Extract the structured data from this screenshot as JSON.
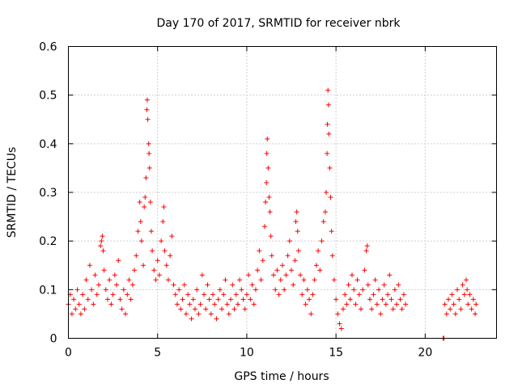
{
  "chart_data": {
    "type": "scatter",
    "title": "Day 170 of 2017, SRMTID for receiver nbrk",
    "xlabel": "GPS time / hours",
    "ylabel": "SRMTID / TECUs",
    "xlim": [
      0,
      24
    ],
    "ylim": [
      0,
      0.6
    ],
    "grid": true,
    "marker": "+",
    "color": "#ff0000",
    "x_ticks": [
      0,
      5,
      10,
      15,
      20
    ],
    "x_tick_labels": [
      "0",
      "5",
      "10",
      "15",
      "20"
    ],
    "y_ticks": [
      0,
      0.1,
      0.2,
      0.3,
      0.4,
      0.5,
      0.6
    ],
    "y_tick_labels": [
      "0",
      "0.1",
      "0.2",
      "0.3",
      "0.4",
      "0.5",
      "0.6"
    ],
    "series": [
      {
        "name": "SRMTID",
        "points": [
          [
            0.0,
            0.07
          ],
          [
            0.1,
            0.09
          ],
          [
            0.2,
            0.05
          ],
          [
            0.3,
            0.08
          ],
          [
            0.4,
            0.06
          ],
          [
            0.5,
            0.1
          ],
          [
            0.6,
            0.07
          ],
          [
            0.7,
            0.05
          ],
          [
            0.8,
            0.09
          ],
          [
            0.9,
            0.06
          ],
          [
            1.0,
            0.12
          ],
          [
            1.1,
            0.08
          ],
          [
            1.2,
            0.15
          ],
          [
            1.3,
            0.1
          ],
          [
            1.4,
            0.07
          ],
          [
            1.5,
            0.13
          ],
          [
            1.6,
            0.09
          ],
          [
            1.7,
            0.11
          ],
          [
            1.8,
            0.19
          ],
          [
            1.85,
            0.2
          ],
          [
            1.9,
            0.21
          ],
          [
            1.95,
            0.18
          ],
          [
            2.0,
            0.14
          ],
          [
            2.1,
            0.1
          ],
          [
            2.2,
            0.08
          ],
          [
            2.3,
            0.12
          ],
          [
            2.4,
            0.07
          ],
          [
            2.5,
            0.09
          ],
          [
            2.6,
            0.13
          ],
          [
            2.7,
            0.11
          ],
          [
            2.8,
            0.16
          ],
          [
            2.9,
            0.08
          ],
          [
            3.0,
            0.06
          ],
          [
            3.1,
            0.1
          ],
          [
            3.2,
            0.05
          ],
          [
            3.3,
            0.09
          ],
          [
            3.4,
            0.12
          ],
          [
            3.5,
            0.08
          ],
          [
            3.6,
            0.11
          ],
          [
            3.7,
            0.14
          ],
          [
            3.8,
            0.17
          ],
          [
            3.9,
            0.22
          ],
          [
            4.0,
            0.28
          ],
          [
            4.05,
            0.24
          ],
          [
            4.1,
            0.2
          ],
          [
            4.2,
            0.15
          ],
          [
            4.25,
            0.27
          ],
          [
            4.3,
            0.29
          ],
          [
            4.35,
            0.33
          ],
          [
            4.4,
            0.47
          ],
          [
            4.42,
            0.49
          ],
          [
            4.45,
            0.45
          ],
          [
            4.5,
            0.4
          ],
          [
            4.52,
            0.38
          ],
          [
            4.55,
            0.35
          ],
          [
            4.6,
            0.28
          ],
          [
            4.65,
            0.22
          ],
          [
            4.7,
            0.18
          ],
          [
            4.8,
            0.14
          ],
          [
            4.9,
            0.12
          ],
          [
            5.0,
            0.16
          ],
          [
            5.1,
            0.13
          ],
          [
            5.2,
            0.2
          ],
          [
            5.3,
            0.24
          ],
          [
            5.35,
            0.27
          ],
          [
            5.4,
            0.18
          ],
          [
            5.5,
            0.15
          ],
          [
            5.6,
            0.12
          ],
          [
            5.7,
            0.17
          ],
          [
            5.8,
            0.21
          ],
          [
            5.9,
            0.11
          ],
          [
            6.0,
            0.09
          ],
          [
            6.1,
            0.07
          ],
          [
            6.2,
            0.1
          ],
          [
            6.3,
            0.06
          ],
          [
            6.4,
            0.08
          ],
          [
            6.5,
            0.11
          ],
          [
            6.6,
            0.05
          ],
          [
            6.7,
            0.09
          ],
          [
            6.8,
            0.07
          ],
          [
            6.9,
            0.04
          ],
          [
            7.0,
            0.08
          ],
          [
            7.1,
            0.06
          ],
          [
            7.2,
            0.1
          ],
          [
            7.3,
            0.05
          ],
          [
            7.4,
            0.07
          ],
          [
            7.5,
            0.13
          ],
          [
            7.6,
            0.09
          ],
          [
            7.7,
            0.06
          ],
          [
            7.8,
            0.11
          ],
          [
            7.9,
            0.08
          ],
          [
            8.0,
            0.05
          ],
          [
            8.1,
            0.09
          ],
          [
            8.2,
            0.07
          ],
          [
            8.3,
            0.04
          ],
          [
            8.4,
            0.08
          ],
          [
            8.5,
            0.1
          ],
          [
            8.6,
            0.06
          ],
          [
            8.7,
            0.09
          ],
          [
            8.8,
            0.12
          ],
          [
            8.9,
            0.07
          ],
          [
            9.0,
            0.05
          ],
          [
            9.1,
            0.08
          ],
          [
            9.2,
            0.11
          ],
          [
            9.3,
            0.06
          ],
          [
            9.4,
            0.09
          ],
          [
            9.5,
            0.07
          ],
          [
            9.6,
            0.12
          ],
          [
            9.7,
            0.1
          ],
          [
            9.8,
            0.08
          ],
          [
            9.9,
            0.06
          ],
          [
            10.0,
            0.09
          ],
          [
            10.1,
            0.13
          ],
          [
            10.2,
            0.08
          ],
          [
            10.3,
            0.11
          ],
          [
            10.4,
            0.07
          ],
          [
            10.5,
            0.1
          ],
          [
            10.6,
            0.14
          ],
          [
            10.7,
            0.18
          ],
          [
            10.8,
            0.12
          ],
          [
            10.9,
            0.16
          ],
          [
            11.0,
            0.23
          ],
          [
            11.05,
            0.28
          ],
          [
            11.1,
            0.32
          ],
          [
            11.12,
            0.38
          ],
          [
            11.15,
            0.41
          ],
          [
            11.2,
            0.35
          ],
          [
            11.25,
            0.29
          ],
          [
            11.3,
            0.26
          ],
          [
            11.35,
            0.21
          ],
          [
            11.4,
            0.17
          ],
          [
            11.5,
            0.13
          ],
          [
            11.6,
            0.1
          ],
          [
            11.7,
            0.14
          ],
          [
            11.8,
            0.09
          ],
          [
            11.9,
            0.12
          ],
          [
            12.0,
            0.15
          ],
          [
            12.1,
            0.1
          ],
          [
            12.2,
            0.13
          ],
          [
            12.3,
            0.17
          ],
          [
            12.4,
            0.2
          ],
          [
            12.5,
            0.14
          ],
          [
            12.6,
            0.11
          ],
          [
            12.7,
            0.16
          ],
          [
            12.75,
            0.24
          ],
          [
            12.8,
            0.26
          ],
          [
            12.85,
            0.22
          ],
          [
            12.9,
            0.18
          ],
          [
            13.0,
            0.13
          ],
          [
            13.1,
            0.09
          ],
          [
            13.2,
            0.12
          ],
          [
            13.3,
            0.07
          ],
          [
            13.4,
            0.1
          ],
          [
            13.5,
            0.08
          ],
          [
            13.6,
            0.05
          ],
          [
            13.7,
            0.09
          ],
          [
            13.8,
            0.12
          ],
          [
            13.9,
            0.15
          ],
          [
            14.0,
            0.18
          ],
          [
            14.1,
            0.14
          ],
          [
            14.2,
            0.2
          ],
          [
            14.3,
            0.24
          ],
          [
            14.4,
            0.26
          ],
          [
            14.45,
            0.3
          ],
          [
            14.5,
            0.38
          ],
          [
            14.52,
            0.44
          ],
          [
            14.55,
            0.51
          ],
          [
            14.58,
            0.48
          ],
          [
            14.6,
            0.42
          ],
          [
            14.65,
            0.35
          ],
          [
            14.7,
            0.29
          ],
          [
            14.75,
            0.22
          ],
          [
            14.8,
            0.17
          ],
          [
            14.9,
            0.12
          ],
          [
            15.0,
            0.08
          ],
          [
            15.1,
            0.05
          ],
          [
            15.2,
            0.03
          ],
          [
            15.3,
            0.02
          ],
          [
            15.4,
            0.06
          ],
          [
            15.5,
            0.09
          ],
          [
            15.6,
            0.07
          ],
          [
            15.7,
            0.11
          ],
          [
            15.8,
            0.08
          ],
          [
            15.9,
            0.13
          ],
          [
            16.0,
            0.1
          ],
          [
            16.1,
            0.07
          ],
          [
            16.2,
            0.12
          ],
          [
            16.3,
            0.09
          ],
          [
            16.4,
            0.06
          ],
          [
            16.5,
            0.1
          ],
          [
            16.6,
            0.14
          ],
          [
            16.7,
            0.18
          ],
          [
            16.75,
            0.19
          ],
          [
            16.8,
            0.11
          ],
          [
            16.9,
            0.08
          ],
          [
            17.0,
            0.06
          ],
          [
            17.1,
            0.09
          ],
          [
            17.2,
            0.12
          ],
          [
            17.3,
            0.07
          ],
          [
            17.4,
            0.1
          ],
          [
            17.5,
            0.05
          ],
          [
            17.6,
            0.08
          ],
          [
            17.7,
            0.11
          ],
          [
            17.8,
            0.07
          ],
          [
            17.9,
            0.09
          ],
          [
            18.0,
            0.13
          ],
          [
            18.1,
            0.08
          ],
          [
            18.2,
            0.06
          ],
          [
            18.3,
            0.1
          ],
          [
            18.4,
            0.07
          ],
          [
            18.5,
            0.11
          ],
          [
            18.6,
            0.08
          ],
          [
            18.7,
            0.06
          ],
          [
            18.8,
            0.09
          ],
          [
            18.9,
            0.07
          ],
          [
            21.0,
            0.0
          ],
          [
            21.05,
            0.0
          ],
          [
            21.1,
            0.07
          ],
          [
            21.2,
            0.05
          ],
          [
            21.3,
            0.08
          ],
          [
            21.4,
            0.06
          ],
          [
            21.5,
            0.09
          ],
          [
            21.6,
            0.07
          ],
          [
            21.7,
            0.05
          ],
          [
            21.8,
            0.1
          ],
          [
            21.9,
            0.08
          ],
          [
            22.0,
            0.06
          ],
          [
            22.1,
            0.11
          ],
          [
            22.2,
            0.09
          ],
          [
            22.3,
            0.12
          ],
          [
            22.35,
            0.1
          ],
          [
            22.4,
            0.07
          ],
          [
            22.5,
            0.09
          ],
          [
            22.6,
            0.06
          ],
          [
            22.7,
            0.08
          ],
          [
            22.8,
            0.05
          ],
          [
            22.85,
            0.07
          ]
        ]
      }
    ]
  }
}
